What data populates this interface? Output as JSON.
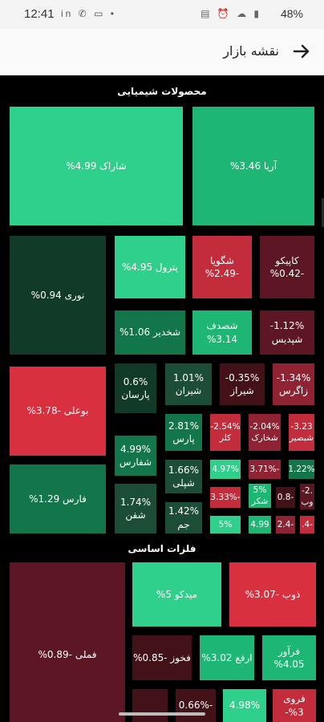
{
  "status_bar": {
    "time": "12:41",
    "left_icons": "in ✆ ▭ •",
    "right_icons": "▤ ⏰ ☁ ▮",
    "battery": "48%"
  },
  "header": {
    "title": "نقشه بازار",
    "back_icon": "arrow-right-icon"
  },
  "sections": [
    {
      "title": "محصولات شیمیایی"
    },
    {
      "title": "فلزات اساسی"
    }
  ],
  "tiles": [
    {
      "name": "شاراک",
      "change": "4.99%"
    },
    {
      "name": "آریا",
      "change": "3.46%"
    },
    {
      "name": "نوری",
      "change": "0.94%"
    },
    {
      "name": "پترول",
      "change": "4.95%"
    },
    {
      "name": "شگویا",
      "change": "-2.49%"
    },
    {
      "name": "کاپیکو",
      "change": "-0.42%"
    },
    {
      "name": "شخدیر",
      "change": "1.06%"
    },
    {
      "name": "شصدف",
      "change": "3.14%"
    },
    {
      "name": "شپدیس",
      "change": "-1.12%"
    },
    {
      "name": "بوعلی",
      "change": "-3.78%"
    },
    {
      "name": "پارسان",
      "change": "0.6%"
    },
    {
      "name": "شیران",
      "change": "1.01%"
    },
    {
      "name": "شیراز",
      "change": "-0.35%"
    },
    {
      "name": "زاگرس",
      "change": "-1.34%"
    },
    {
      "name": "شفارس",
      "change": "4.99%"
    },
    {
      "name": "پارس",
      "change": "2.81%"
    },
    {
      "name": "کلر",
      "change": "-2.54%"
    },
    {
      "name": "شخارک",
      "change": "-2.04%"
    },
    {
      "name": "شبصیر",
      "change": "-3.23"
    },
    {
      "name": "فارس",
      "change": "1.29%"
    },
    {
      "name": "شپلی",
      "change": "1.66%"
    },
    {
      "name": "",
      "change": "4.97%"
    },
    {
      "name": "",
      "change": "-3.71%"
    },
    {
      "name": "",
      "change": "1.22%"
    },
    {
      "name": "شفن",
      "change": "1.74%"
    },
    {
      "name": "جم",
      "change": "1.42%"
    },
    {
      "name": "",
      "change": "-3.33%"
    },
    {
      "name": "شکر",
      "change": "5%"
    },
    {
      "name": "",
      "change": "-0.8"
    },
    {
      "name": "وب",
      "change": "-2."
    },
    {
      "name": "",
      "change": "5%"
    },
    {
      "name": "",
      "change": "4.99"
    },
    {
      "name": "",
      "change": "-2.4"
    },
    {
      "name": "",
      "change": "-4."
    },
    {
      "name": "میدکو",
      "change": "5%"
    },
    {
      "name": "ذوب",
      "change": "-3.07%"
    },
    {
      "name": "فملی",
      "change": "-0.89%"
    },
    {
      "name": "فخوز",
      "change": "-0.85%"
    },
    {
      "name": "ارفع",
      "change": "3.02%"
    },
    {
      "name": "فرآور",
      "change": "4.05%"
    },
    {
      "name": "",
      "change": ""
    },
    {
      "name": "",
      "change": "-0.66%"
    },
    {
      "name": "",
      "change": "4.98%"
    },
    {
      "name": "فروی",
      "change": "3%-"
    }
  ]
}
